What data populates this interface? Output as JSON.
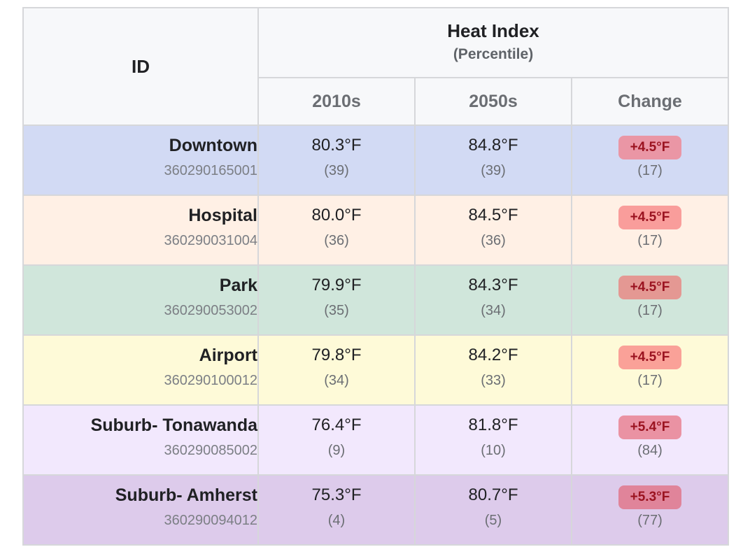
{
  "header": {
    "id_label": "ID",
    "group_title": "Heat Index",
    "group_subtitle": "(Percentile)",
    "columns": [
      "2010s",
      "2050s",
      "Change"
    ]
  },
  "colors": {
    "row_backgrounds": [
      "#d2daf4",
      "#fff0e5",
      "#d0e6db",
      "#fefad8",
      "#f2e8fd",
      "#ddcbeb"
    ],
    "badge_backgrounds": [
      "#ea96a5",
      "#f99d9b",
      "#e49893",
      "#faa198",
      "#ea92a3",
      "#e0849a"
    ]
  },
  "rows": [
    {
      "name": "Downtown",
      "code": "360290165001",
      "v2010": "80.3°F",
      "p2010": "(39)",
      "v2050": "84.8°F",
      "p2050": "(39)",
      "change": "+4.5°F",
      "pchange": "(17)"
    },
    {
      "name": "Hospital",
      "code": "360290031004",
      "v2010": "80.0°F",
      "p2010": "(36)",
      "v2050": "84.5°F",
      "p2050": "(36)",
      "change": "+4.5°F",
      "pchange": "(17)"
    },
    {
      "name": "Park",
      "code": "360290053002",
      "v2010": "79.9°F",
      "p2010": "(35)",
      "v2050": "84.3°F",
      "p2050": "(34)",
      "change": "+4.5°F",
      "pchange": "(17)"
    },
    {
      "name": "Airport",
      "code": "360290100012",
      "v2010": "79.8°F",
      "p2010": "(34)",
      "v2050": "84.2°F",
      "p2050": "(33)",
      "change": "+4.5°F",
      "pchange": "(17)"
    },
    {
      "name": "Suburb- Tonawanda",
      "code": "360290085002",
      "v2010": "76.4°F",
      "p2010": "(9)",
      "v2050": "81.8°F",
      "p2050": "(10)",
      "change": "+5.4°F",
      "pchange": "(84)"
    },
    {
      "name": "Suburb- Amherst",
      "code": "360290094012",
      "v2010": "75.3°F",
      "p2010": "(4)",
      "v2050": "80.7°F",
      "p2050": "(5)",
      "change": "+5.3°F",
      "pchange": "(77)"
    }
  ]
}
